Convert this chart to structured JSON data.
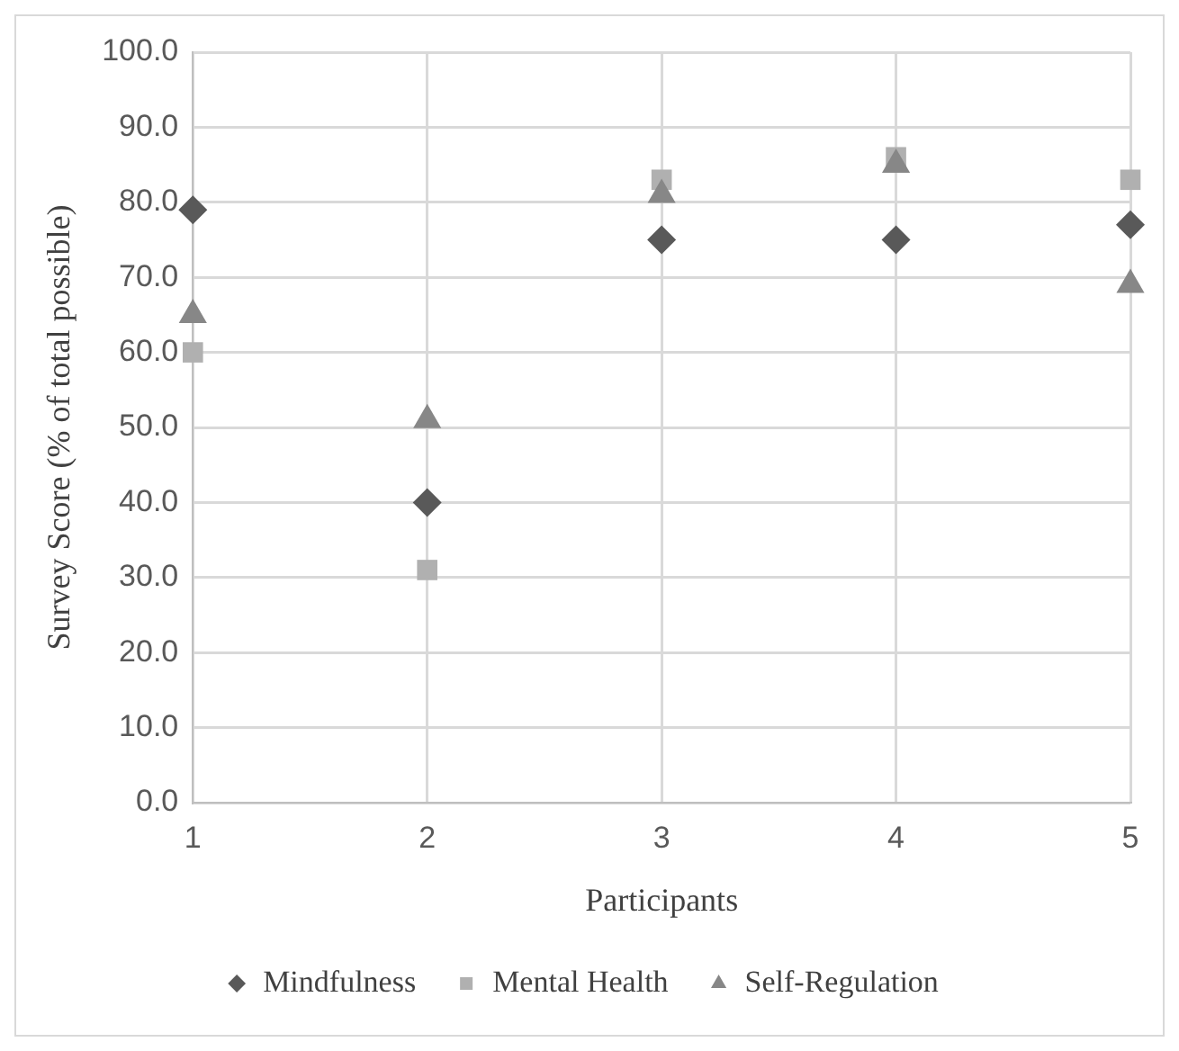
{
  "chart_data": {
    "type": "scatter",
    "xlabel": "Participants",
    "ylabel": "Survey Score (% of total possible)",
    "x": [
      1,
      2,
      3,
      4,
      5
    ],
    "series": [
      {
        "name": "Mindfulness",
        "color": "#595959",
        "marker": "diamond",
        "values": [
          79,
          40,
          75,
          75,
          77
        ]
      },
      {
        "name": "Mental Health",
        "color": "#b0b0b0",
        "marker": "square",
        "values": [
          60,
          31,
          83,
          86,
          83
        ]
      },
      {
        "name": "Self-Regulation",
        "color": "#878787",
        "marker": "triangle",
        "values": [
          65,
          51,
          81,
          85,
          69
        ]
      }
    ],
    "xlim": [
      1,
      5
    ],
    "xticks": [
      1,
      2,
      3,
      4,
      5
    ],
    "ylim": [
      0,
      100
    ],
    "yticks": [
      {
        "value": 0,
        "label": "0.0"
      },
      {
        "value": 10,
        "label": "10.0"
      },
      {
        "value": 20,
        "label": "20.0"
      },
      {
        "value": 30,
        "label": "30.0"
      },
      {
        "value": 40,
        "label": "40.0"
      },
      {
        "value": 50,
        "label": "50.0"
      },
      {
        "value": 60,
        "label": "60.0"
      },
      {
        "value": 70,
        "label": "70.0"
      },
      {
        "value": 80,
        "label": "80.0"
      },
      {
        "value": 90,
        "label": "90.0"
      },
      {
        "value": 100,
        "label": "100.0"
      }
    ],
    "grid": true,
    "legend": "bottom"
  }
}
